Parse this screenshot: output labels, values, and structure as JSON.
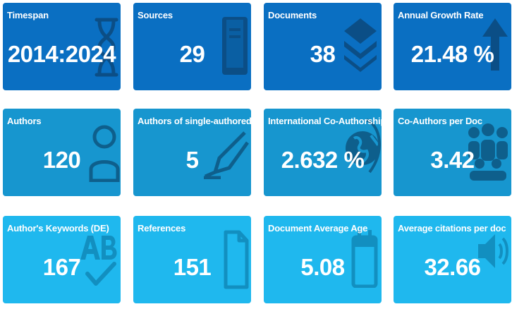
{
  "cards": [
    {
      "label": "Timespan",
      "value": "2014:2024",
      "icon": "hourglass-icon"
    },
    {
      "label": "Sources",
      "value": "29",
      "icon": "book-icon"
    },
    {
      "label": "Documents",
      "value": "38",
      "icon": "layers-icon"
    },
    {
      "label": "Annual Growth Rate",
      "value": "21.48 %",
      "icon": "arrow-up-icon"
    },
    {
      "label": "Authors",
      "value": "120",
      "icon": "user-icon"
    },
    {
      "label": "Authors of single-authored docs",
      "value": "5",
      "icon": "pen-icon"
    },
    {
      "label": "International Co-Authorship",
      "value": "2.632 %",
      "icon": "globe-icon"
    },
    {
      "label": "Co-Authors per Doc",
      "value": "3.42",
      "icon": "users-icon"
    },
    {
      "label": "Author's Keywords (DE)",
      "value": "167",
      "icon": "spell-check-icon"
    },
    {
      "label": "References",
      "value": "151",
      "icon": "file-icon"
    },
    {
      "label": "Document Average Age",
      "value": "5.08",
      "icon": "calendar-icon"
    },
    {
      "label": "Average citations per doc",
      "value": "32.66",
      "icon": "volume-icon"
    }
  ],
  "colors": {
    "row1": "#0a6fc2",
    "row2": "#1796cf",
    "row3": "#1fb8ee",
    "icon_shade": "#0d4f82"
  }
}
